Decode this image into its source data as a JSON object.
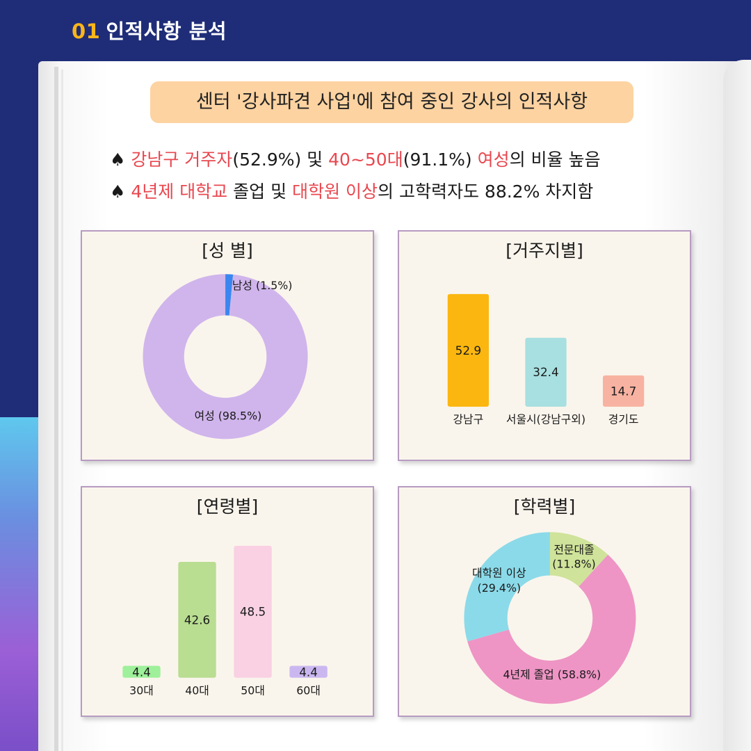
{
  "header": {
    "num": "01",
    "title": "인적사항 분석"
  },
  "banner": "센터 '강사파견 사업'에 참여 중인 강사의 인적사항",
  "bullets": [
    {
      "sym": "♠ ",
      "p1": "강남구 거주자",
      "p2": "(52.9%) 및 ",
      "p3": "40~50대",
      "p4": "(91.1%) ",
      "p5": "여성",
      "p6": "의 비율 높음"
    },
    {
      "sym": "♠ ",
      "p1": "4년제 대학교",
      "p2": " 졸업 및 ",
      "p3": "대학원 이상",
      "p4": "의 고학력자도 88.2% 차지함"
    }
  ],
  "colors": {
    "accent": "#e8474f",
    "header_num": "#f9b51a",
    "banner": "#fcd3a1"
  },
  "chart_data": [
    {
      "type": "pie",
      "title": "[성 별]",
      "categories": [
        "남성",
        "여성"
      ],
      "values": [
        1.5,
        98.5
      ],
      "labels": [
        "남성 (1.5%)",
        "여성  (98.5%)"
      ],
      "colors": [
        "#3a86f0",
        "#d0b5ec"
      ]
    },
    {
      "type": "bar",
      "title": "[거주지별]",
      "categories": [
        "강남구",
        "서울시(강남구외)",
        "경기도"
      ],
      "values": [
        52.9,
        32.4,
        14.7
      ],
      "colors": [
        "#fbb70f",
        "#a8dfe0",
        "#f8b2a1"
      ]
    },
    {
      "type": "bar",
      "title": "[연령별]",
      "categories": [
        "30대",
        "40대",
        "50대",
        "60대"
      ],
      "values": [
        4.4,
        42.6,
        48.5,
        4.4
      ],
      "colors": [
        "#9ef09a",
        "#b9dd91",
        "#f9d1e3",
        "#cbb7f0"
      ]
    },
    {
      "type": "pie",
      "title": "[학력별]",
      "categories": [
        "전문대졸",
        "4년제 졸업",
        "대학원 이상"
      ],
      "values": [
        11.8,
        58.8,
        29.4
      ],
      "labels": [
        [
          "전문대졸",
          "(11.8%)"
        ],
        [
          "4년제 졸업 (58.8%)"
        ],
        [
          "대학원 이상",
          "(29.4%)"
        ]
      ],
      "colors": [
        "#cfe39a",
        "#ee95c5",
        "#8bdae9"
      ]
    }
  ]
}
